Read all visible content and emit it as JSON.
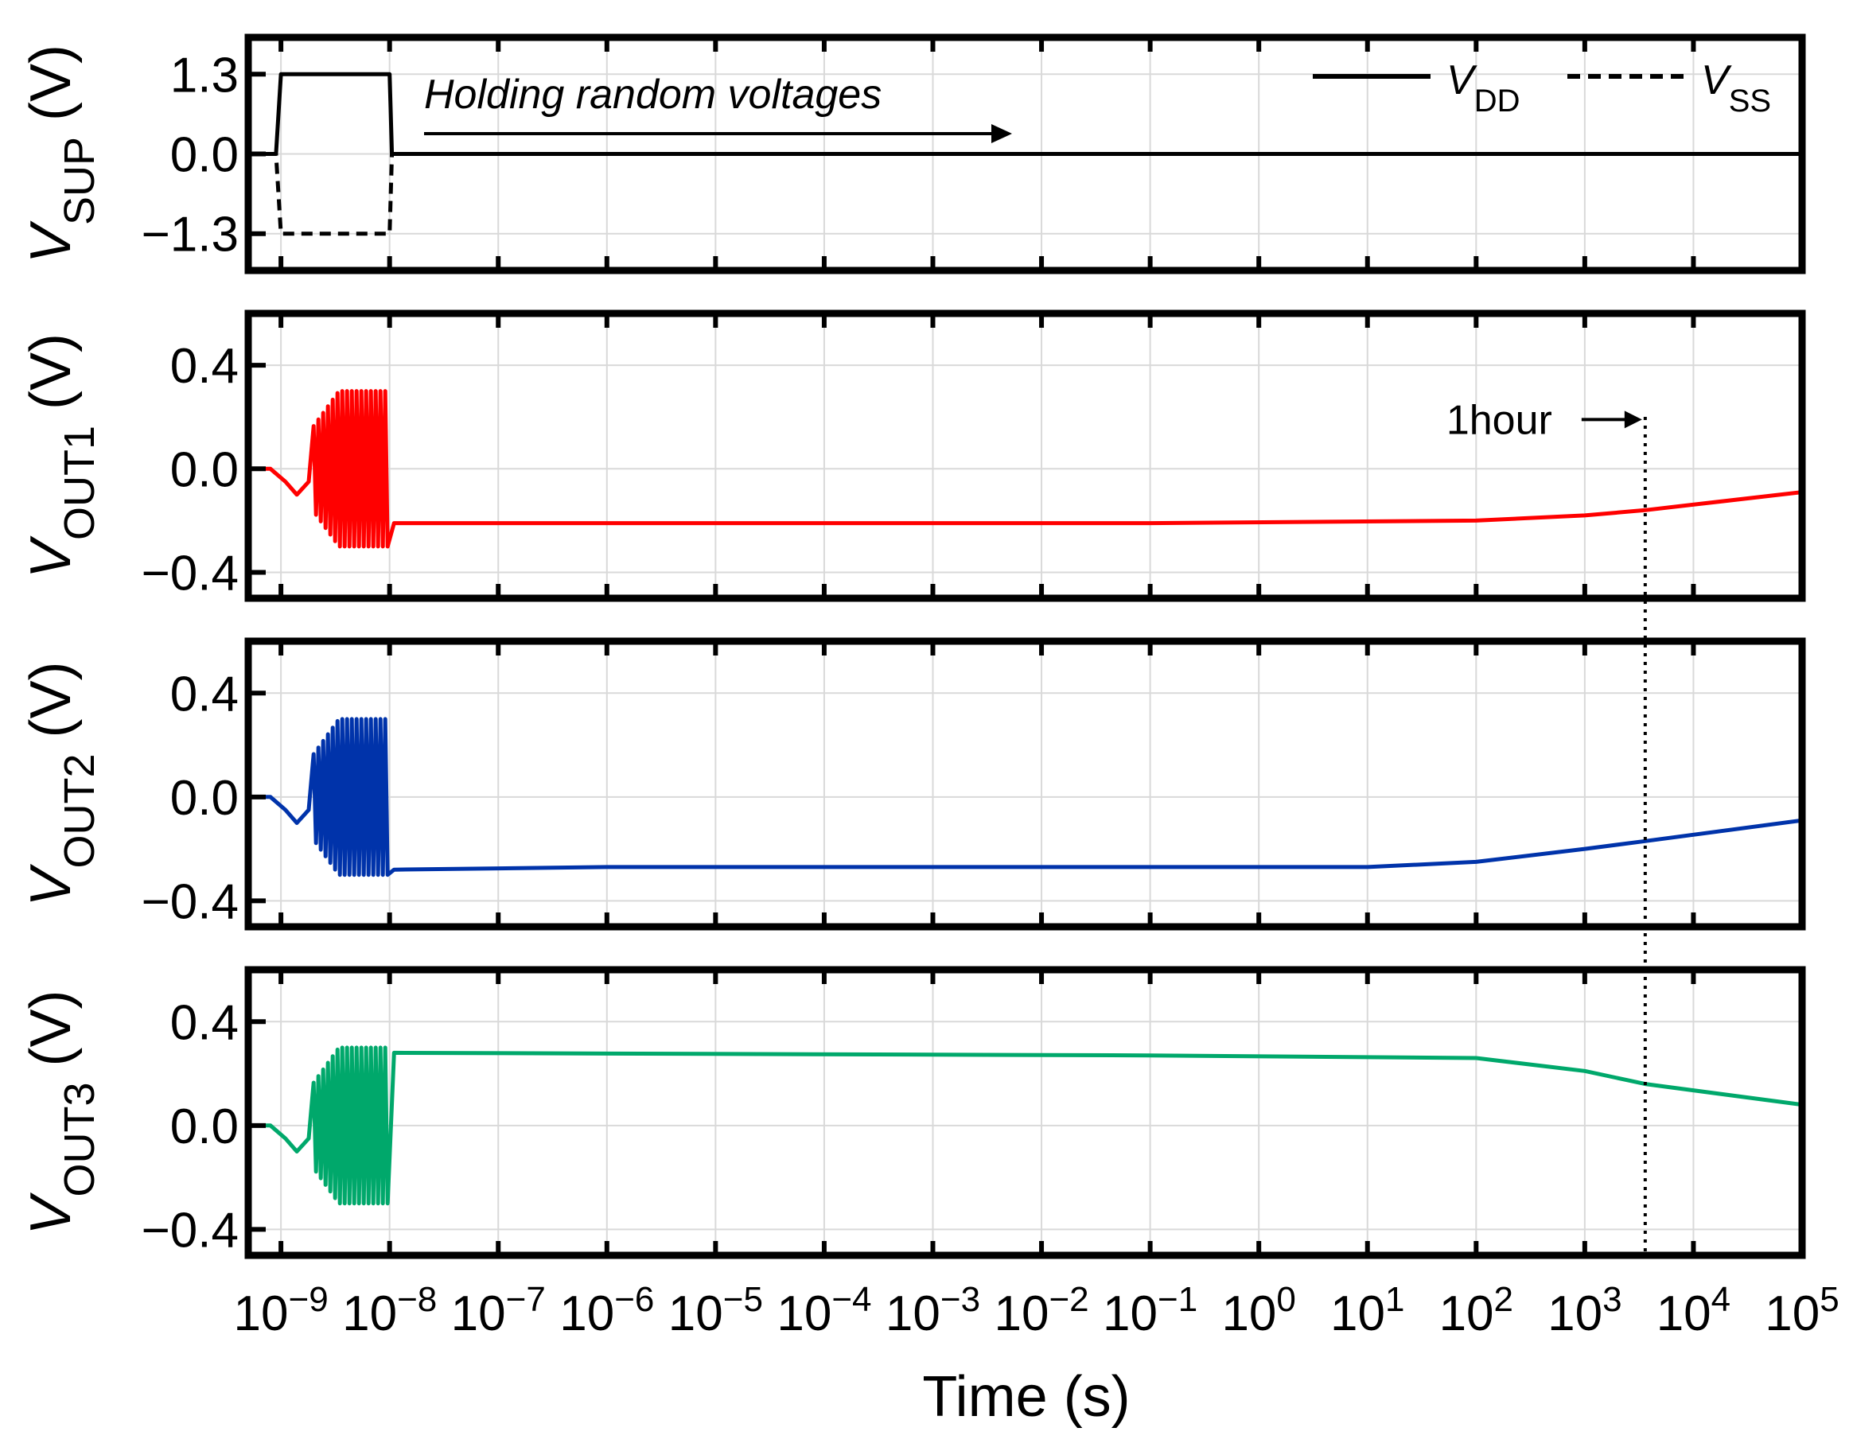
{
  "chart_data": [
    {
      "type": "line",
      "panel": "supply",
      "ylabel": {
        "main": "V",
        "sub": "SUP",
        "unit": " (V)"
      },
      "xscale": "log",
      "ylim": [
        -1.9,
        1.9
      ],
      "yticks": [
        {
          "value": 1.3,
          "label": "1.3"
        },
        {
          "value": 0.0,
          "label": "0.0"
        },
        {
          "value": -1.3,
          "label": "−1.3"
        }
      ],
      "annotation": "Holding random voltages",
      "legend_position": "top-right",
      "series": [
        {
          "name": "VDD",
          "legend_main": "V",
          "legend_sub": "DD",
          "color": "#000000",
          "style": "solid",
          "points": [
            [
              5e-10,
              0
            ],
            [
              9e-10,
              0
            ],
            [
              1e-09,
              1.3
            ],
            [
              1e-08,
              1.3
            ],
            [
              1.05e-08,
              0
            ],
            [
              100000.0,
              0
            ]
          ]
        },
        {
          "name": "VSS",
          "legend_main": "V",
          "legend_sub": "SS",
          "color": "#000000",
          "style": "dashed",
          "points": [
            [
              5e-10,
              0
            ],
            [
              9e-10,
              0
            ],
            [
              1e-09,
              -1.3
            ],
            [
              1e-08,
              -1.3
            ],
            [
              1.05e-08,
              0
            ],
            [
              100000.0,
              0
            ]
          ]
        }
      ]
    },
    {
      "type": "line",
      "panel": "out1",
      "ylabel": {
        "main": "V",
        "sub": "OUT1",
        "unit": " (V)"
      },
      "xscale": "log",
      "ylim": [
        -0.5,
        0.6
      ],
      "yticks": [
        {
          "value": 0.4,
          "label": "0.4"
        },
        {
          "value": 0.0,
          "label": "0.0"
        },
        {
          "value": -0.4,
          "label": "−0.4"
        }
      ],
      "marker_annotation": "1hour",
      "series": [
        {
          "name": "VOUT1",
          "color": "#ff0000",
          "oscillation": {
            "start": 2e-09,
            "end": 1e-08,
            "amplitude": 0.3
          },
          "points": [
            [
              5e-10,
              0
            ],
            [
              8e-10,
              0
            ],
            [
              1.1e-09,
              -0.05
            ],
            [
              1.4e-09,
              -0.1
            ],
            [
              1.8e-09,
              -0.05
            ],
            [
              1.1e-08,
              -0.21
            ],
            [
              0.1,
              -0.21
            ],
            [
              100.0,
              -0.2
            ],
            [
              1000.0,
              -0.18
            ],
            [
              3600.0,
              -0.16
            ],
            [
              100000.0,
              -0.09
            ]
          ]
        }
      ]
    },
    {
      "type": "line",
      "panel": "out2",
      "ylabel": {
        "main": "V",
        "sub": "OUT2",
        "unit": " (V)"
      },
      "xscale": "log",
      "ylim": [
        -0.5,
        0.6
      ],
      "yticks": [
        {
          "value": 0.4,
          "label": "0.4"
        },
        {
          "value": 0.0,
          "label": "0.0"
        },
        {
          "value": -0.4,
          "label": "−0.4"
        }
      ],
      "series": [
        {
          "name": "VOUT2",
          "color": "#0033aa",
          "oscillation": {
            "start": 2e-09,
            "end": 1e-08,
            "amplitude": 0.3
          },
          "points": [
            [
              5e-10,
              0
            ],
            [
              8e-10,
              0
            ],
            [
              1.1e-09,
              -0.05
            ],
            [
              1.4e-09,
              -0.1
            ],
            [
              1.8e-09,
              -0.05
            ],
            [
              1.1e-08,
              -0.28
            ],
            [
              1e-06,
              -0.27
            ],
            [
              10.0,
              -0.27
            ],
            [
              100.0,
              -0.25
            ],
            [
              1000.0,
              -0.2
            ],
            [
              3600.0,
              -0.17
            ],
            [
              100000.0,
              -0.09
            ]
          ]
        }
      ]
    },
    {
      "type": "line",
      "panel": "out3",
      "ylabel": {
        "main": "V",
        "sub": "OUT3",
        "unit": " (V)"
      },
      "xscale": "log",
      "ylim": [
        -0.5,
        0.6
      ],
      "yticks": [
        {
          "value": 0.4,
          "label": "0.4"
        },
        {
          "value": 0.0,
          "label": "0.0"
        },
        {
          "value": -0.4,
          "label": "−0.4"
        }
      ],
      "xlabel": "Time (s)",
      "xticks": [
        -9,
        -8,
        -7,
        -6,
        -5,
        -4,
        -3,
        -2,
        -1,
        0,
        1,
        2,
        3,
        4,
        5
      ],
      "series": [
        {
          "name": "VOUT3",
          "color": "#00a86b",
          "oscillation": {
            "start": 2e-09,
            "end": 1e-08,
            "amplitude": 0.3
          },
          "points": [
            [
              5e-10,
              0
            ],
            [
              8e-10,
              0
            ],
            [
              1.1e-09,
              -0.05
            ],
            [
              1.4e-09,
              -0.1
            ],
            [
              1.8e-09,
              -0.05
            ],
            [
              1.1e-08,
              0.28
            ],
            [
              0.1,
              0.27
            ],
            [
              100.0,
              0.26
            ],
            [
              1000.0,
              0.21
            ],
            [
              3600.0,
              0.16
            ],
            [
              100000.0,
              0.08
            ]
          ]
        }
      ]
    }
  ],
  "one_hour_marker_x": 3600,
  "x_domain": [
    5e-10,
    100000.0
  ]
}
